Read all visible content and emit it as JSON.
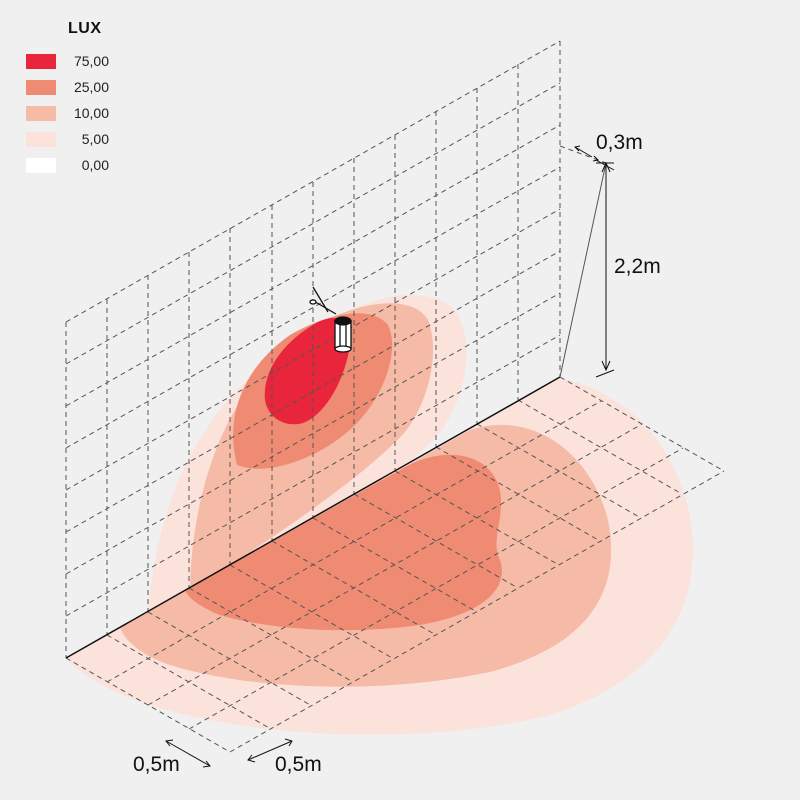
{
  "legend": {
    "title": "LUX",
    "items": [
      {
        "value": "75,00",
        "color": "#e8253a"
      },
      {
        "value": "25,00",
        "color": "#ef8b73"
      },
      {
        "value": "10,00",
        "color": "#f6bba7"
      },
      {
        "value": "5,00",
        "color": "#fbe3dc"
      },
      {
        "value": "0,00",
        "color": "#ffffff"
      }
    ]
  },
  "dimensions": {
    "wall_offset": "0,3m",
    "mount_height": "2,2m",
    "grid_x": "0,5m",
    "grid_y": "0,5m"
  },
  "colors": {
    "background": "#f0f0f0",
    "grid_line": "#555555",
    "wall_edge": "#111111"
  }
}
